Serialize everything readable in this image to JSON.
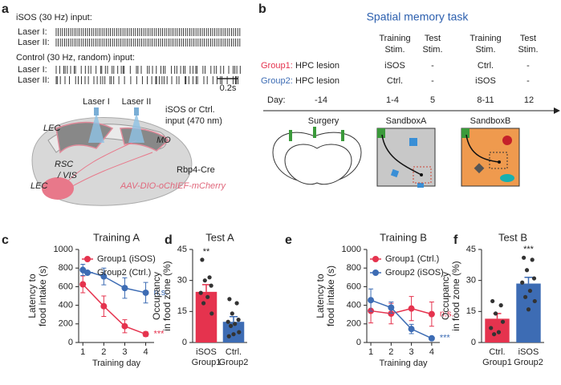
{
  "panel_labels": [
    "a",
    "b",
    "c",
    "d",
    "e",
    "f"
  ],
  "panel_a": {
    "isos_heading": "iSOS (30 Hz) input:",
    "isos_lasers": [
      "Laser I:",
      "Laser II:"
    ],
    "control_heading": "Control (30 Hz, random) input:",
    "control_lasers": [
      "Laser I:",
      "Laser II:"
    ],
    "scale_bar": "0.2s",
    "laser_labels": [
      "Laser I",
      "Laser II"
    ],
    "input_note": [
      "iSOS or Ctrl.",
      "input (470 nm)"
    ],
    "regions": [
      "LEC",
      "RSC",
      "/ VIS",
      "MO",
      "LEC"
    ],
    "mouse_line": "Rbp4-Cre",
    "virus": "AAV-DIO-oChIEF-mCherry"
  },
  "panel_b": {
    "title": "Spatial memory task",
    "columns": [
      [
        "Training",
        "Stim."
      ],
      [
        "Test",
        "Stim."
      ],
      [
        "Training",
        "Stim."
      ],
      [
        "Test",
        "Stim."
      ]
    ],
    "rows": [
      [
        "Group1:",
        "HPC lesion",
        "iSOS",
        "-",
        "Ctrl.",
        "-"
      ],
      [
        "Group2:",
        "HPC lesion",
        "Ctrl.",
        "-",
        "iSOS",
        "-"
      ]
    ],
    "days": [
      "Day:",
      "-14",
      "1-4",
      "5",
      "8-11",
      "12"
    ],
    "stages": [
      "Surgery",
      "SandboxA",
      "SandboxB"
    ]
  },
  "chart_data": [
    {
      "type": "line",
      "title": "Training A",
      "ylabel": [
        "Latency to",
        "food intake (s)"
      ],
      "xlabel": "Training day",
      "x": [
        1,
        2,
        3,
        4
      ],
      "xlim": [
        0.8,
        4.4
      ],
      "xticks": [
        1,
        2,
        3,
        4
      ],
      "ylim": [
        0,
        1000
      ],
      "yticks": [
        0,
        200,
        400,
        600,
        800,
        1000
      ],
      "legend": "top",
      "series": [
        {
          "name": "Group1 (iSOS)",
          "color": "#e5334e",
          "values": [
            625,
            390,
            175,
            90
          ],
          "errors": [
            90,
            110,
            70,
            25
          ],
          "annotation": "***"
        },
        {
          "name": "Group2 (Ctrl.)",
          "color": "#3d6cb4",
          "values": [
            780,
            710,
            585,
            535
          ],
          "errors": [
            60,
            90,
            110,
            110
          ],
          "annotation": "n.s."
        }
      ]
    },
    {
      "type": "bar",
      "title": "Test A",
      "ylabel": [
        "Occupancy",
        "in food zone (%)"
      ],
      "categories": [
        [
          "iSOS",
          "Group1"
        ],
        [
          "Ctrl.",
          "Group2"
        ]
      ],
      "colors": [
        "#e5334e",
        "#3d6cb4"
      ],
      "values": [
        24.5,
        10
      ],
      "errors": [
        3.5,
        2.5
      ],
      "annotations": [
        "**",
        null
      ],
      "points": [
        [
          40,
          31.5,
          30,
          27.5,
          24,
          22,
          19,
          14
        ],
        [
          21,
          19,
          14,
          11,
          10,
          9,
          8,
          5,
          4,
          3
        ]
      ],
      "ylim": [
        0,
        45
      ],
      "yticks": [
        0,
        15,
        30,
        45
      ]
    },
    {
      "type": "line",
      "title": "Training B",
      "ylabel": [
        "Latency to",
        "food intake (s)"
      ],
      "xlabel": "Training day",
      "x": [
        1,
        2,
        3,
        4
      ],
      "xlim": [
        0.8,
        4.4
      ],
      "xticks": [
        1,
        2,
        3,
        4
      ],
      "ylim": [
        0,
        1000
      ],
      "yticks": [
        0,
        200,
        400,
        600,
        800,
        1000
      ],
      "legend": "top",
      "series": [
        {
          "name": "Group1 (Ctrl.)",
          "color": "#e5334e",
          "values": [
            340,
            310,
            365,
            305
          ],
          "errors": [
            130,
            110,
            130,
            130
          ],
          "annotation": "n.s."
        },
        {
          "name": "Group2 (iSOS)",
          "color": "#3d6cb4",
          "values": [
            455,
            375,
            145,
            45
          ],
          "errors": [
            120,
            60,
            50,
            10
          ],
          "annotation": "***"
        }
      ]
    },
    {
      "type": "bar",
      "title": "Test B",
      "ylabel": [
        "Occupancy",
        "in food zone (%)"
      ],
      "categories": [
        [
          "Ctrl.",
          "Group1"
        ],
        [
          "iSOS",
          "Group2"
        ]
      ],
      "colors": [
        "#e5334e",
        "#3d6cb4"
      ],
      "values": [
        11.5,
        28.5
      ],
      "errors": [
        2.5,
        3
      ],
      "annotations": [
        null,
        "***"
      ],
      "points": [
        [
          20,
          18,
          14,
          10,
          7,
          5,
          4
        ],
        [
          41,
          40,
          35,
          31,
          29,
          25,
          22,
          20,
          16
        ]
      ],
      "ylim": [
        0,
        45
      ],
      "yticks": [
        0,
        15,
        30,
        45
      ]
    }
  ]
}
